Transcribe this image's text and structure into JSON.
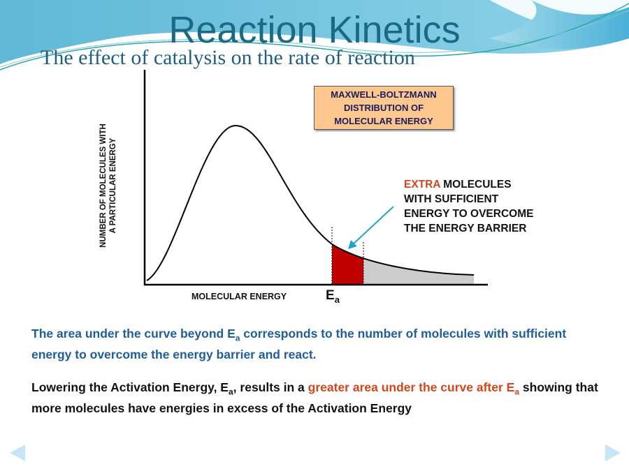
{
  "title": "Reaction Kinetics",
  "subtitle": "The effect of catalysis on the rate of reaction",
  "diagram": {
    "box_lines": [
      "MAXWELL-BOLTZMANN",
      "DISTRIBUTION OF",
      "MOLECULAR ENERGY"
    ],
    "annotation": {
      "highlight": "EXTRA",
      "rest_line1": " MOLECULES",
      "line2": "WITH SUFFICIENT",
      "line3": "ENERGY TO OVERCOME",
      "line4": "THE ENERGY BARRIER"
    },
    "y_label_lines": [
      "NUMBER OF MOLECULES WITH",
      "A PARTICULAR ENERGY"
    ],
    "x_label": "MOLECULAR ENERGY",
    "ea_main": "E",
    "ea_sub": "a",
    "colors": {
      "extra_area": "#c00000",
      "area_beyond": "#cccccc",
      "arrow": "#1fa3c8"
    }
  },
  "para1": {
    "a": "The area under the curve beyond E",
    "sub": "a",
    "b": " corresponds to the number of molecules with sufficient energy to overcome the energy barrier and react."
  },
  "para2": {
    "a": "Lowering the Activation Energy, E",
    "sub1": "a",
    "b": ", results in a ",
    "highlight": "greater area under the curve after E",
    "sub2": "a",
    "c": " showing that more molecules have energies in excess of the Activation Energy"
  },
  "nav": {
    "prev": "previous-slide",
    "next": "next-slide"
  }
}
